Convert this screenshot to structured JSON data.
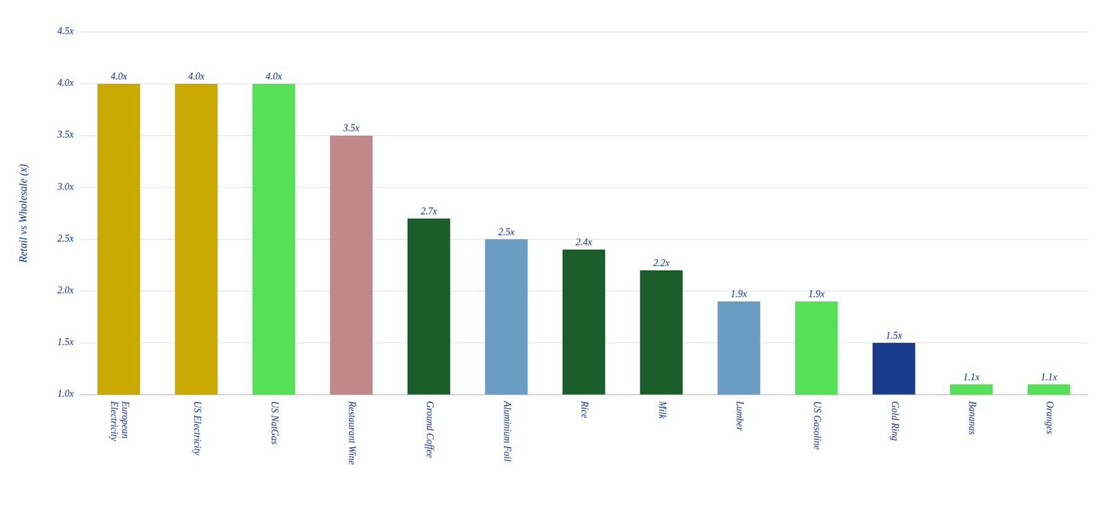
{
  "chart_data": {
    "type": "bar",
    "ylabel": "Retail vs Wholesale (x)",
    "categories": [
      "European\nElectricity",
      "US Electricity",
      "US NatGas",
      "Restaurant Wine",
      "Ground Coffee",
      "Aluminium Foil",
      "Rice",
      "Milk",
      "Lumber",
      "US Gasoline",
      "Gold Ring",
      "Bananas",
      "Oranges"
    ],
    "values": [
      4.0,
      4.0,
      4.0,
      3.5,
      2.7,
      2.5,
      2.4,
      2.2,
      1.9,
      1.9,
      1.5,
      1.1,
      1.1
    ],
    "value_labels": [
      "4.0x",
      "4.0x",
      "4.0x",
      "3.5x",
      "2.7x",
      "2.5x",
      "2.4x",
      "2.2x",
      "1.9x",
      "1.9x",
      "1.5x",
      "1.1x",
      "1.1x"
    ],
    "data_labels": true,
    "colors": [
      "#C9A800",
      "#C9A800",
      "#55E055",
      "#C08888",
      "#1A5C2A",
      "#6B9DC2",
      "#1A5C2A",
      "#1A5C2A",
      "#6B9DC2",
      "#55E055",
      "#1A3A8C",
      "#55E055",
      "#55E055"
    ],
    "ylim": [
      1.0,
      4.5
    ],
    "yticks": [
      {
        "value": 1.0,
        "label": "1.0x"
      },
      {
        "value": 1.5,
        "label": "1.5x"
      },
      {
        "value": 2.0,
        "label": "2.0x"
      },
      {
        "value": 2.5,
        "label": "2.5x"
      },
      {
        "value": 3.0,
        "label": "3.0x"
      },
      {
        "value": 3.5,
        "label": "3.5x"
      },
      {
        "value": 4.0,
        "label": "4.0x"
      },
      {
        "value": 4.5,
        "label": "4.5x"
      }
    ],
    "grid": true
  }
}
